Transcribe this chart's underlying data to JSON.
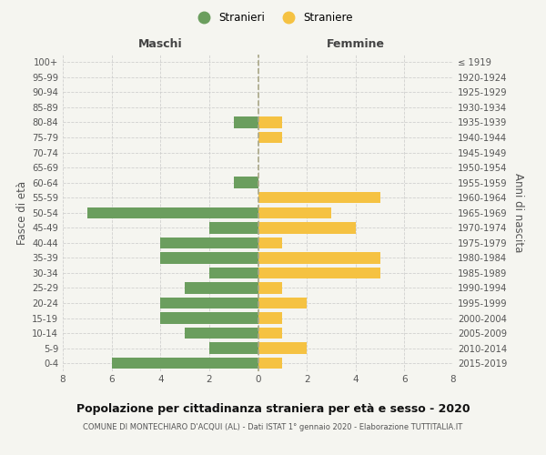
{
  "age_groups": [
    "100+",
    "95-99",
    "90-94",
    "85-89",
    "80-84",
    "75-79",
    "70-74",
    "65-69",
    "60-64",
    "55-59",
    "50-54",
    "45-49",
    "40-44",
    "35-39",
    "30-34",
    "25-29",
    "20-24",
    "15-19",
    "10-14",
    "5-9",
    "0-4"
  ],
  "birth_years": [
    "≤ 1919",
    "1920-1924",
    "1925-1929",
    "1930-1934",
    "1935-1939",
    "1940-1944",
    "1945-1949",
    "1950-1954",
    "1955-1959",
    "1960-1964",
    "1965-1969",
    "1970-1974",
    "1975-1979",
    "1980-1984",
    "1985-1989",
    "1990-1994",
    "1995-1999",
    "2000-2004",
    "2005-2009",
    "2010-2014",
    "2015-2019"
  ],
  "males": [
    0,
    0,
    0,
    0,
    1,
    0,
    0,
    0,
    1,
    0,
    7,
    2,
    4,
    4,
    2,
    3,
    4,
    4,
    3,
    2,
    6
  ],
  "females": [
    0,
    0,
    0,
    0,
    1,
    1,
    0,
    0,
    0,
    5,
    3,
    4,
    1,
    5,
    5,
    1,
    2,
    1,
    1,
    2,
    1
  ],
  "male_color": "#6b9e5e",
  "female_color": "#f5c242",
  "title_main": "Popolazione per cittadinanza straniera per età e sesso - 2020",
  "title_sub": "COMUNE DI MONTECHIARO D'ACQUI (AL) - Dati ISTAT 1° gennaio 2020 - Elaborazione TUTTITALIA.IT",
  "legend_male": "Stranieri",
  "legend_female": "Straniere",
  "xlabel_left": "Maschi",
  "xlabel_right": "Femmine",
  "ylabel_left": "Fasce di età",
  "ylabel_right": "Anni di nascita",
  "xlim": 8,
  "background_color": "#f5f5f0",
  "grid_color": "#cccccc"
}
